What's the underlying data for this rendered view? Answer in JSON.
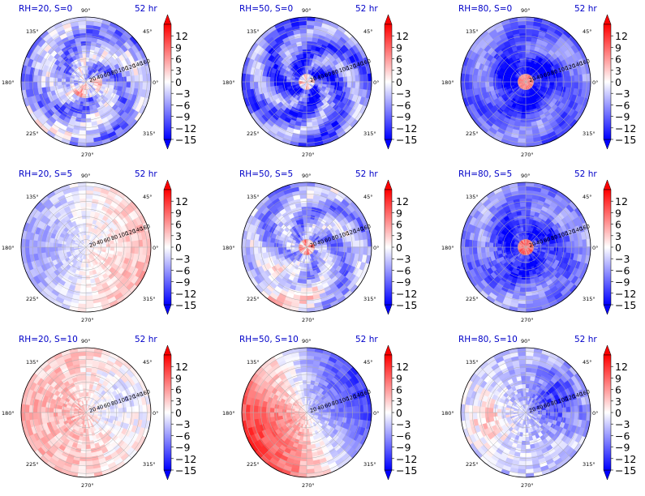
{
  "time_label": "52 hr",
  "angle_labels": [
    "90°",
    "135°",
    "45°",
    "180°",
    "0°",
    "225°",
    "315°",
    "270°"
  ],
  "radial_labels": [
    "20",
    "40",
    "60",
    "80",
    "100",
    "120",
    "140",
    "160"
  ],
  "colorbar": {
    "ticks": [
      "12",
      "9",
      "6",
      "3",
      "0",
      "−3",
      "−6",
      "−9",
      "−12",
      "−15"
    ],
    "colors": {
      "low": "#0000ff",
      "mid": "#ffffff",
      "high": "#ff0000"
    }
  },
  "chart_data": [
    {
      "type": "heatmap",
      "title": "RH=20, S=0",
      "pattern": "rh20s0",
      "vmin": -15,
      "vmax": 15
    },
    {
      "type": "heatmap",
      "title": "RH=50, S=0",
      "pattern": "rh50s0",
      "vmin": -15,
      "vmax": 15
    },
    {
      "type": "heatmap",
      "title": "RH=80, S=0",
      "pattern": "rh80s0",
      "vmin": -15,
      "vmax": 15
    },
    {
      "type": "heatmap",
      "title": "RH=20, S=5",
      "pattern": "rh20s5",
      "vmin": -15,
      "vmax": 15
    },
    {
      "type": "heatmap",
      "title": "RH=50, S=5",
      "pattern": "rh50s5",
      "vmin": -15,
      "vmax": 15
    },
    {
      "type": "heatmap",
      "title": "RH=80, S=5",
      "pattern": "rh80s5",
      "vmin": -15,
      "vmax": 15
    },
    {
      "type": "heatmap",
      "title": "RH=20, S=10",
      "pattern": "rh20s10",
      "vmin": -15,
      "vmax": 15
    },
    {
      "type": "heatmap",
      "title": "RH=50, S=10",
      "pattern": "rh50s10",
      "vmin": -15,
      "vmax": 15
    },
    {
      "type": "heatmap",
      "title": "RH=80, S=10",
      "pattern": "rh80s10",
      "vmin": -15,
      "vmax": 15
    }
  ]
}
